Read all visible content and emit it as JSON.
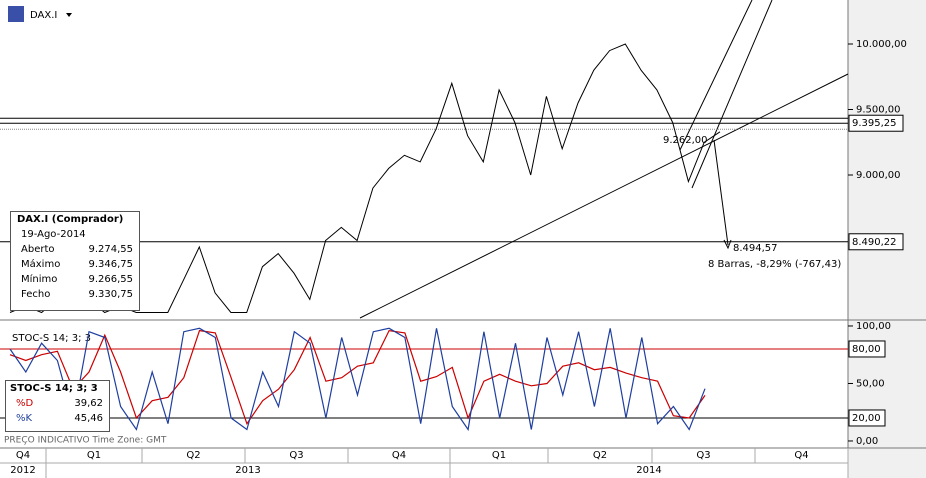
{
  "symbol": "DAX.I",
  "price_chart": {
    "type": "line",
    "color": "#000000",
    "ylim": [
      7893,
      10336
    ],
    "yticks": [
      {
        "value": 10000,
        "label": "10.000,00"
      },
      {
        "value": 9500,
        "label": "9.500,00"
      },
      {
        "value": 9000,
        "label": "9.000,00"
      }
    ],
    "levels": [
      {
        "value": 9395.25,
        "label": "9.395,25"
      },
      {
        "value": 8490.22,
        "label": "8.490,22"
      }
    ],
    "values": [
      7950,
      8000,
      7950,
      8050,
      8000,
      8050,
      7950,
      8000,
      7950,
      7950,
      7950,
      8200,
      8450,
      8100,
      7950,
      7950,
      8300,
      8400,
      8250,
      8050,
      8500,
      8600,
      8500,
      8900,
      9050,
      9150,
      9100,
      9350,
      9700,
      9300,
      9100,
      9650,
      9400,
      9000,
      9600,
      9200,
      9550,
      9800,
      9950,
      10000,
      9800,
      9650,
      9400,
      8950,
      9250,
      9330
    ],
    "annotations": [
      "9.262,00",
      "8.494,57",
      "8 Barras, -8,29% (-767,43)"
    ]
  },
  "info_box": {
    "title": "DAX.I (Comprador)",
    "date": "19-Ago-2014",
    "rows": [
      [
        "Aberto",
        "9.274,55"
      ],
      [
        "Máximo",
        "9.346,75"
      ],
      [
        "Mínimo",
        "9.266,55"
      ],
      [
        "Fecho",
        "9.330,75"
      ]
    ]
  },
  "stoch_chart": {
    "type": "line",
    "title": "STOC-S 14; 3; 3",
    "ylim": [
      -3.5,
      105.2
    ],
    "yticks": [
      {
        "value": 100,
        "label": "100,00"
      },
      {
        "value": 50,
        "label": "50,00"
      },
      {
        "value": 0,
        "label": "0,00"
      }
    ],
    "levels": [
      {
        "value": 80,
        "label": "80,00"
      },
      {
        "value": 20,
        "label": "20,00"
      }
    ],
    "series": [
      {
        "name": "%D",
        "color": "#cc0000",
        "values": [
          75,
          70,
          75,
          78,
          45,
          60,
          92,
          60,
          20,
          35,
          38,
          55,
          96,
          94,
          55,
          15,
          35,
          45,
          62,
          90,
          52,
          55,
          65,
          68,
          96,
          94,
          52,
          56,
          64,
          20,
          52,
          58,
          52,
          48,
          50,
          65,
          68,
          62,
          64,
          59,
          55,
          52,
          22,
          20,
          39.62
        ]
      },
      {
        "name": "%K",
        "color": "#1f3fa0",
        "values": [
          80,
          60,
          85,
          70,
          20,
          95,
          90,
          30,
          10,
          60,
          15,
          95,
          98,
          90,
          20,
          10,
          60,
          30,
          95,
          85,
          20,
          90,
          40,
          95,
          98,
          90,
          15,
          98,
          30,
          10,
          95,
          20,
          85,
          10,
          90,
          40,
          95,
          30,
          98,
          20,
          90,
          15,
          30,
          10,
          45.46
        ]
      }
    ],
    "legend_values": [
      "39,62",
      "45,46"
    ]
  },
  "footer": "PREÇO INDICATIVO   Time Zone: GMT",
  "time_axis": {
    "quarters": [
      "Q4",
      "Q1",
      "Q2",
      "Q3",
      "Q4",
      "Q1",
      "Q2",
      "Q3",
      "Q4"
    ],
    "years": [
      "2012",
      "2013",
      "2014"
    ]
  }
}
